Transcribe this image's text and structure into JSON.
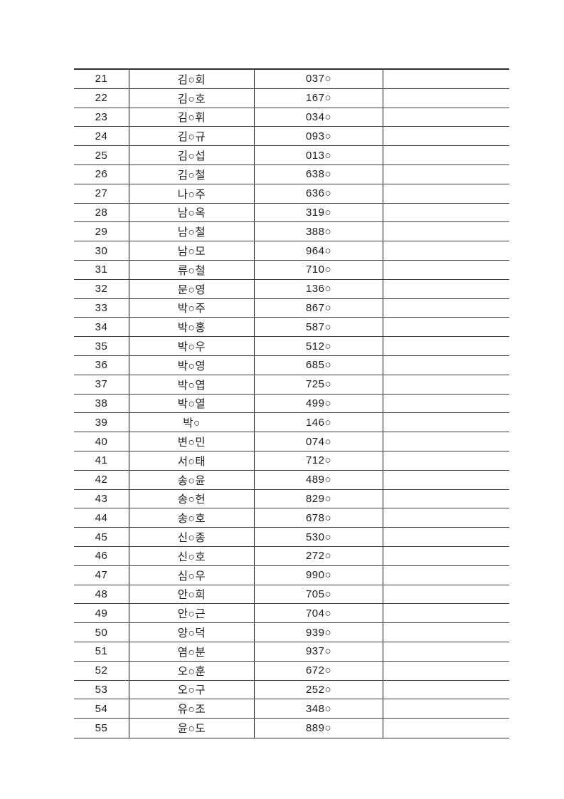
{
  "page": {
    "background_color": "#ffffff",
    "text_color": "#1c1c1c",
    "line_color": "#3d3d3d"
  },
  "table": {
    "description": "masked-name-roster-continuation",
    "mask_char": "○",
    "columns": [
      "row-number",
      "masked-name",
      "masked-number",
      "blank"
    ],
    "rows": [
      {
        "no": "21",
        "name": "김○회",
        "number": "037○",
        "note": ""
      },
      {
        "no": "22",
        "name": "김○호",
        "number": "167○",
        "note": ""
      },
      {
        "no": "23",
        "name": "김○휘",
        "number": "034○",
        "note": ""
      },
      {
        "no": "24",
        "name": "김○규",
        "number": "093○",
        "note": ""
      },
      {
        "no": "25",
        "name": "김○섭",
        "number": "013○",
        "note": ""
      },
      {
        "no": "26",
        "name": "김○철",
        "number": "638○",
        "note": ""
      },
      {
        "no": "27",
        "name": "나○주",
        "number": "636○",
        "note": ""
      },
      {
        "no": "28",
        "name": "남○옥",
        "number": "319○",
        "note": ""
      },
      {
        "no": "29",
        "name": "남○철",
        "number": "388○",
        "note": ""
      },
      {
        "no": "30",
        "name": "남○모",
        "number": "964○",
        "note": ""
      },
      {
        "no": "31",
        "name": "류○철",
        "number": "710○",
        "note": ""
      },
      {
        "no": "32",
        "name": "문○영",
        "number": "136○",
        "note": ""
      },
      {
        "no": "33",
        "name": "박○주",
        "number": "867○",
        "note": ""
      },
      {
        "no": "34",
        "name": "박○홍",
        "number": "587○",
        "note": ""
      },
      {
        "no": "35",
        "name": "박○우",
        "number": "512○",
        "note": ""
      },
      {
        "no": "36",
        "name": "박○영",
        "number": "685○",
        "note": ""
      },
      {
        "no": "37",
        "name": "박○엽",
        "number": "725○",
        "note": ""
      },
      {
        "no": "38",
        "name": "박○열",
        "number": "499○",
        "note": ""
      },
      {
        "no": "39",
        "name": "박○",
        "number": "146○",
        "note": ""
      },
      {
        "no": "40",
        "name": "변○민",
        "number": "074○",
        "note": ""
      },
      {
        "no": "41",
        "name": "서○태",
        "number": "712○",
        "note": ""
      },
      {
        "no": "42",
        "name": "송○윤",
        "number": "489○",
        "note": ""
      },
      {
        "no": "43",
        "name": "송○헌",
        "number": "829○",
        "note": ""
      },
      {
        "no": "44",
        "name": "송○호",
        "number": "678○",
        "note": ""
      },
      {
        "no": "45",
        "name": "신○종",
        "number": "530○",
        "note": ""
      },
      {
        "no": "46",
        "name": "신○호",
        "number": "272○",
        "note": ""
      },
      {
        "no": "47",
        "name": "심○우",
        "number": "990○",
        "note": ""
      },
      {
        "no": "48",
        "name": "안○희",
        "number": "705○",
        "note": ""
      },
      {
        "no": "49",
        "name": "안○근",
        "number": "704○",
        "note": ""
      },
      {
        "no": "50",
        "name": "양○덕",
        "number": "939○",
        "note": ""
      },
      {
        "no": "51",
        "name": "염○분",
        "number": "937○",
        "note": ""
      },
      {
        "no": "52",
        "name": "오○훈",
        "number": "672○",
        "note": ""
      },
      {
        "no": "53",
        "name": "오○구",
        "number": "252○",
        "note": ""
      },
      {
        "no": "54",
        "name": "유○조",
        "number": "348○",
        "note": ""
      },
      {
        "no": "55",
        "name": "윤○도",
        "number": "889○",
        "note": ""
      }
    ]
  }
}
